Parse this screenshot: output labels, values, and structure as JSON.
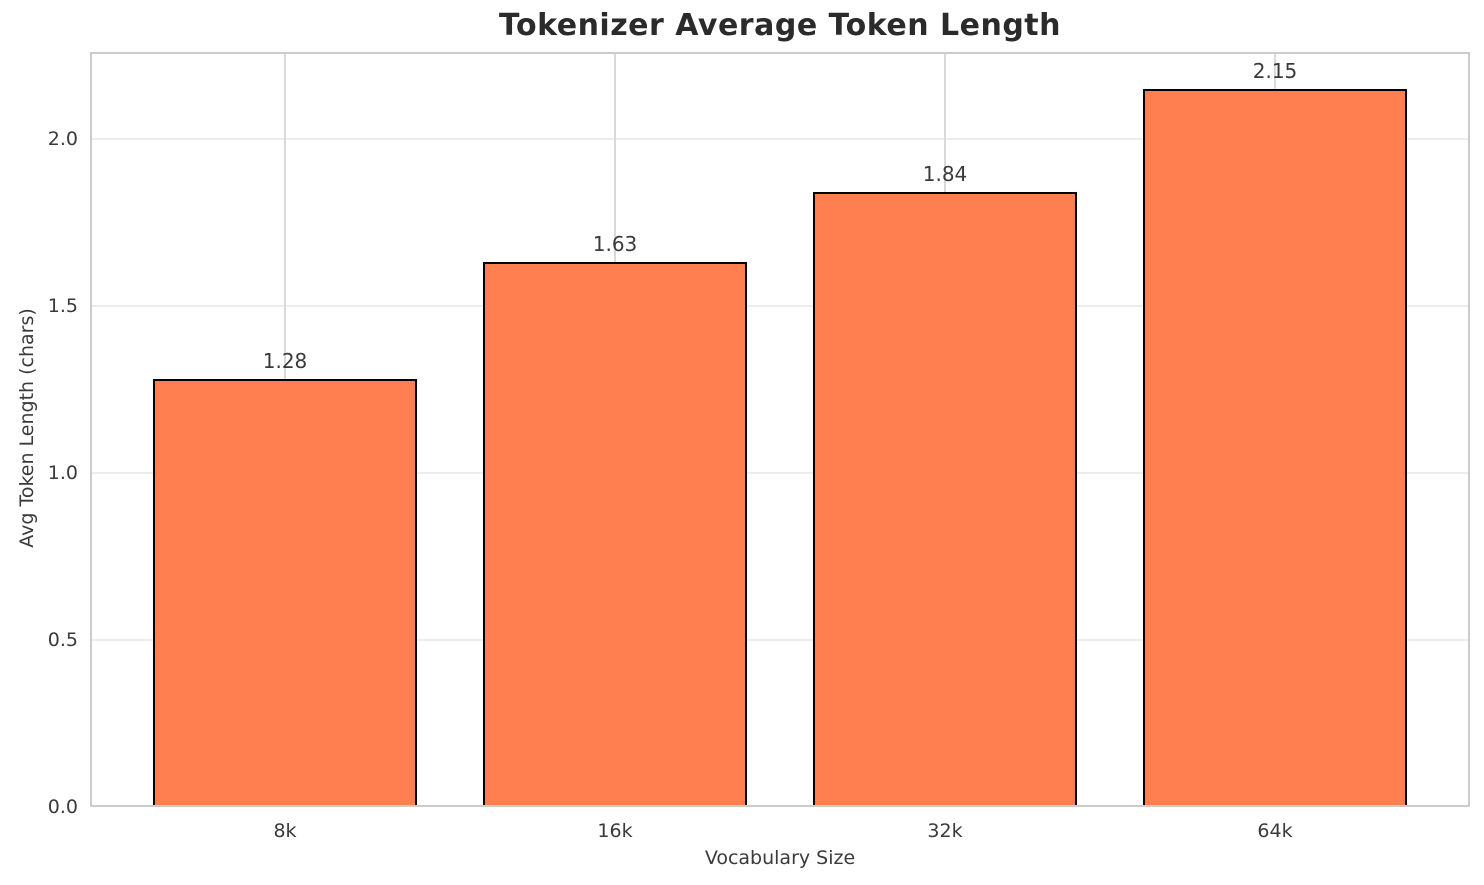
{
  "chart_data": {
    "type": "bar",
    "title": "Tokenizer Average Token Length",
    "categories": [
      "8k",
      "16k",
      "32k",
      "64k"
    ],
    "values": [
      1.28,
      1.63,
      1.84,
      2.15
    ],
    "bar_value_labels": [
      "1.28",
      "1.63",
      "1.84",
      "2.15"
    ],
    "xlabel": "Vocabulary Size",
    "ylabel": "Avg Token Length (chars)",
    "ylim": [
      0,
      2.26
    ],
    "ytick_values": [
      0.0,
      0.5,
      1.0,
      1.5,
      2.0
    ],
    "ytick_labels": [
      "0.0",
      "0.5",
      "1.0",
      "1.5",
      "2.0"
    ],
    "grid": "on",
    "legend": "none",
    "colors": {
      "bar_fill": "#FF7F50",
      "bar_edge": "#000000",
      "grid_horizontal": "#ededed",
      "grid_vertical": "#d9d9d9",
      "spine": "#cccccc",
      "text": "#3a3a3a",
      "title_text": "#2b2b2b",
      "background": "#ffffff"
    }
  }
}
